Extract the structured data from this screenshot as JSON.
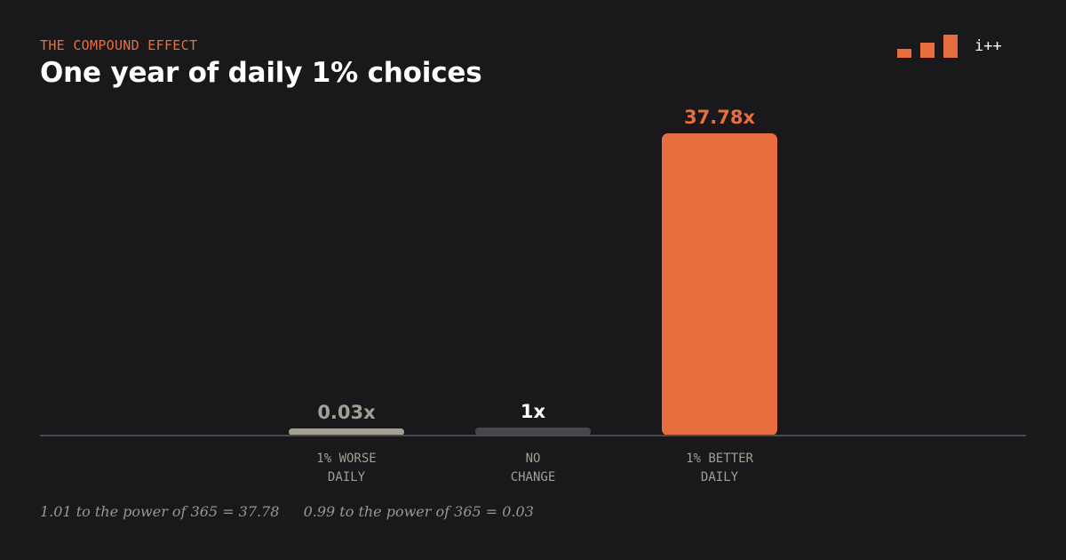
{
  "header": {
    "eyebrow": "THE COMPOUND EFFECT",
    "title": "One year of daily 1% choices"
  },
  "logo": {
    "text": "i++",
    "icon": "bar-chart-icon",
    "color": "#e86f3d",
    "bar_levels": [
      0.35,
      0.6,
      1.0
    ]
  },
  "chart_data": {
    "type": "bar",
    "title": "One year of daily 1% choices",
    "xlabel": "",
    "ylabel": "",
    "ylim": [
      0,
      37.78
    ],
    "grid": false,
    "categories": [
      [
        "1% WORSE",
        "DAILY"
      ],
      [
        "NO",
        "CHANGE"
      ],
      [
        "1% BETTER",
        "DAILY"
      ]
    ],
    "values": [
      0.03,
      1,
      37.78
    ],
    "value_labels": [
      "0.03x",
      "1x",
      "37.78x"
    ],
    "bar_colors": [
      "#a39f93",
      "#48474d",
      "#e86f3d"
    ],
    "label_colors": [
      "#a39f93",
      "#ffffff",
      "#e86f3d"
    ]
  },
  "footnotes": [
    "1.01 to the power of 365 = 37.78",
    "0.99 to the power of 365 = 0.03"
  ],
  "colors": {
    "background": "#19181b",
    "accent": "#e86f3d",
    "baseline": "#4a494e",
    "axis_text": "#a39f93"
  }
}
